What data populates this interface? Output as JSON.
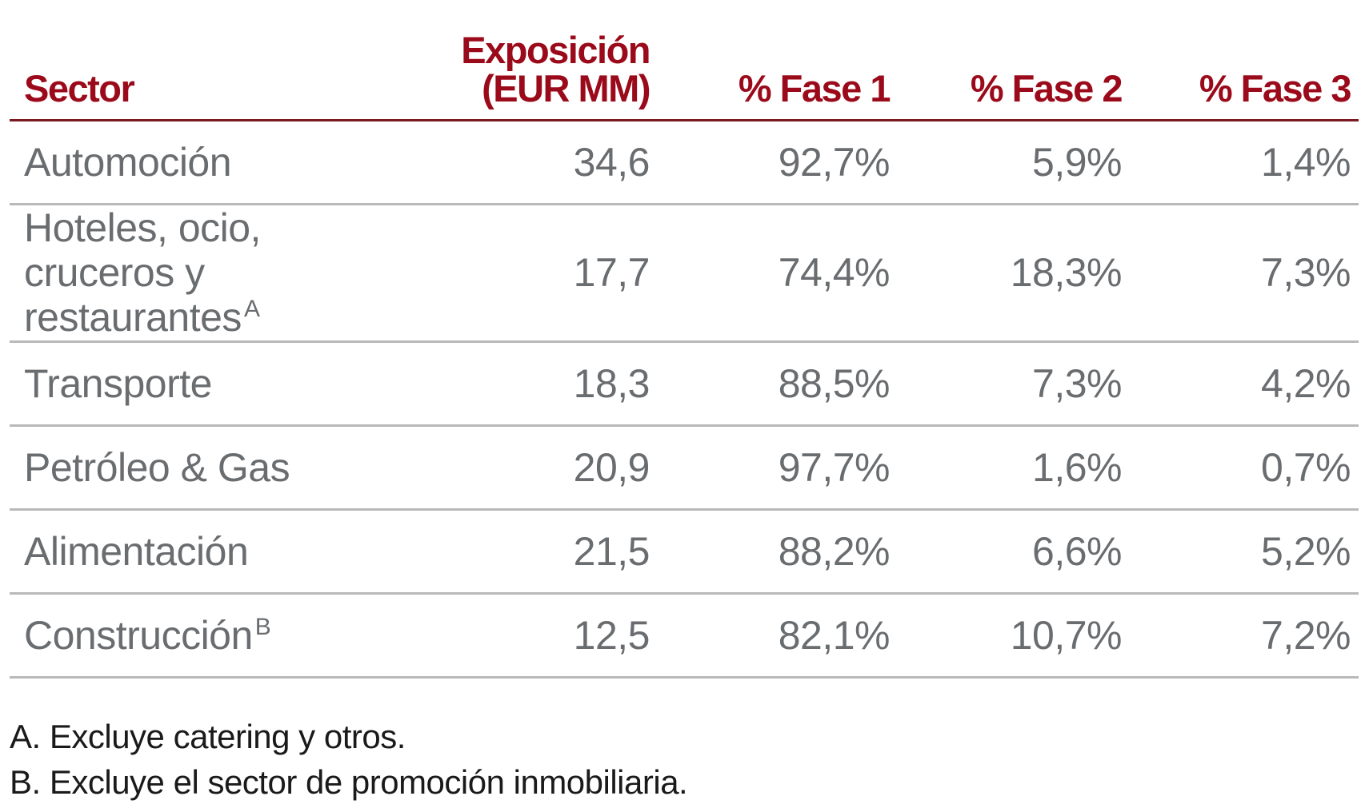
{
  "table": {
    "headers": {
      "sector": "Sector",
      "exposure_line1": "Exposición",
      "exposure_line2": "(EUR MM)",
      "stage1": "% Fase 1",
      "stage2": "% Fase 2",
      "stage3": "% Fase 3"
    },
    "rows": [
      {
        "sector": "Automoción",
        "note": "",
        "exposure": "34,6",
        "stage1": "92,7%",
        "stage2": "5,9%",
        "stage3": "1,4%"
      },
      {
        "sector_line1": "Hoteles, ocio,",
        "sector_line2": "cruceros y",
        "sector_line3": "restaurantes",
        "note": "A",
        "exposure": "17,7",
        "stage1": "74,4%",
        "stage2": "18,3%",
        "stage3": "7,3%"
      },
      {
        "sector": "Transporte",
        "note": "",
        "exposure": "18,3",
        "stage1": "88,5%",
        "stage2": "7,3%",
        "stage3": "4,2%"
      },
      {
        "sector": "Petróleo & Gas",
        "note": "",
        "exposure": "20,9",
        "stage1": "97,7%",
        "stage2": "1,6%",
        "stage3": "0,7%"
      },
      {
        "sector": "Alimentación",
        "note": "",
        "exposure": "21,5",
        "stage1": "88,2%",
        "stage2": "6,6%",
        "stage3": "5,2%"
      },
      {
        "sector": "Construcción",
        "note": "B",
        "exposure": "12,5",
        "stage1": "82,1%",
        "stage2": "10,7%",
        "stage3": "7,2%"
      }
    ]
  },
  "footnotes": {
    "a": "A. Excluye catering y otros.",
    "b": "B. Excluye el sector de promoción inmobiliaria."
  },
  "colors": {
    "header_text": "#9b0a1a",
    "header_rule": "#7a1a20",
    "body_text": "#6a6d70",
    "row_rule": "#b9b9b9",
    "footnote_text": "#1a1a1a"
  }
}
